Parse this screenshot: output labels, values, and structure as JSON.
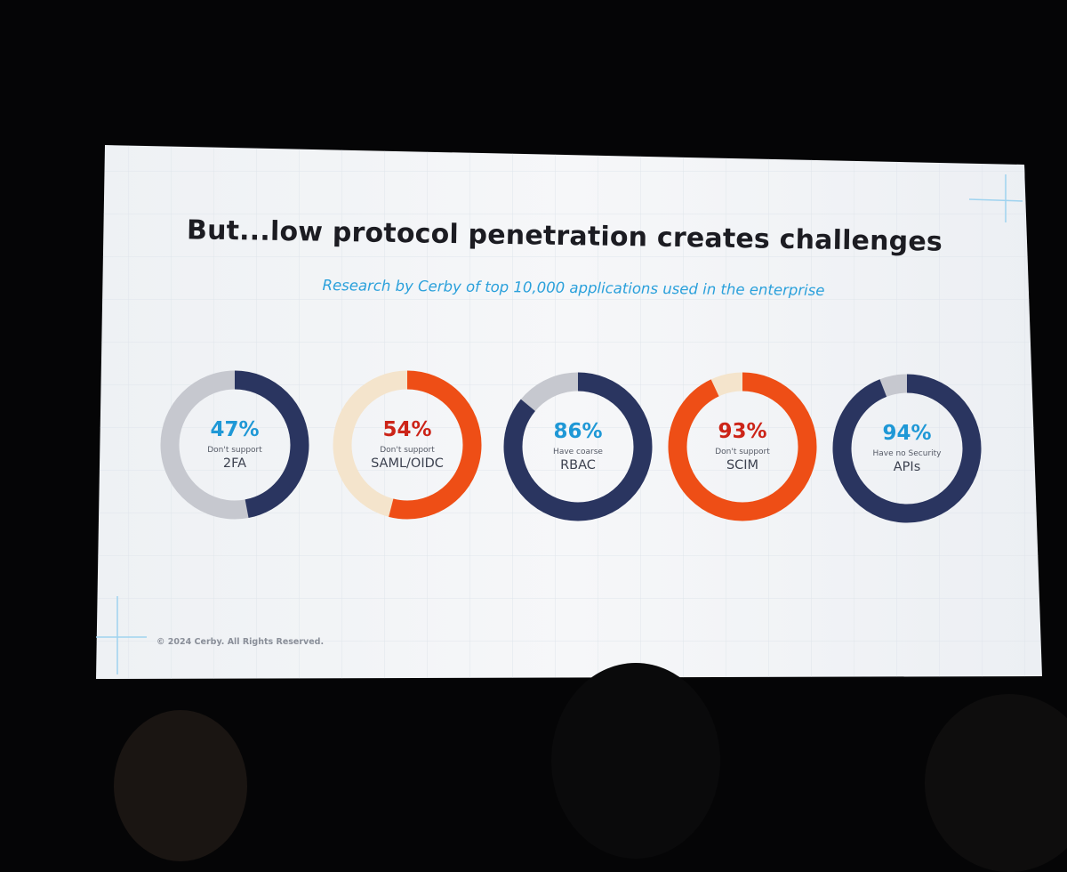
{
  "slide": {
    "title": "But...low protocol penetration creates challenges",
    "subtitle": "Research by Cerby of top 10,000 applications used in the enterprise",
    "copyright": "© 2024 Cerby. All Rights Reserved."
  },
  "colors": {
    "navy": "#2a3560",
    "gray": "#c6c8cf",
    "orange": "#ee4e16",
    "cream": "#f4e4cc",
    "blue_text": "#1f98d6",
    "red_text": "#cc2418"
  },
  "donuts": [
    {
      "percent": "47%",
      "value": 47,
      "line1": "Don't support",
      "line2": "2FA",
      "fill": "navy",
      "track": "gray",
      "text_color": "blue_text"
    },
    {
      "percent": "54%",
      "value": 54,
      "line1": "Don't support",
      "line2": "SAML/OIDC",
      "fill": "orange",
      "track": "cream",
      "text_color": "red_text"
    },
    {
      "percent": "86%",
      "value": 86,
      "line1": "Have coarse",
      "line2": "RBAC",
      "fill": "navy",
      "track": "gray",
      "text_color": "blue_text"
    },
    {
      "percent": "93%",
      "value": 93,
      "line1": "Don't support",
      "line2": "SCIM",
      "fill": "orange",
      "track": "cream",
      "text_color": "red_text"
    },
    {
      "percent": "94%",
      "value": 94,
      "line1": "Have no Security",
      "line2": "APIs",
      "fill": "navy",
      "track": "gray",
      "text_color": "blue_text"
    }
  ]
}
